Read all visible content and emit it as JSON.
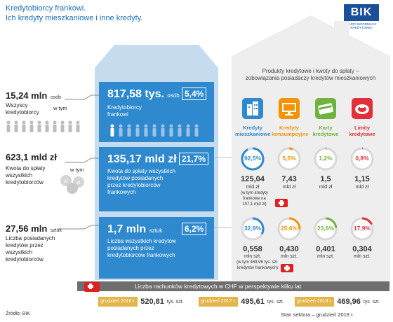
{
  "title": {
    "line1": "Kredytobiorcy frankowi.",
    "line2": "Ich kredyty mieszkaniowe i inne kredyty."
  },
  "logo": {
    "text": "BIK",
    "subtitle": "BIURO INFORMACJI KREDYTOWEJ"
  },
  "left": {
    "s1": {
      "value": "15,24 mln",
      "unit": "osób",
      "desc": [
        "Wszyscy",
        "kredytobiorcy"
      ],
      "wtym": "w tym"
    },
    "s2": {
      "value": "623,1 mld zł",
      "desc": [
        "Kwota do spłaty",
        "wszystkich",
        "kredytobiorców"
      ],
      "wtym": "w tym"
    },
    "s3": {
      "value": "27,56 mln",
      "unit": "sztuk",
      "desc": [
        "Liczba posiadanych",
        "kredytów przez",
        "wszystkich",
        "kredytobiorców"
      ]
    }
  },
  "center": {
    "p1": {
      "value": "817,58 tys.",
      "unit": "osób",
      "pct": "5,4%",
      "desc": [
        "Kredytobiorcy",
        "frankowi"
      ]
    },
    "p2": {
      "value": "135,17 mld zł",
      "pct": "21,7%",
      "desc": [
        "Kwota do spłaty wszystkich",
        "kredytów posiadanych",
        "przez kredytobiorców",
        "frankowych"
      ]
    },
    "p3": {
      "value": "1,7 mln",
      "unit": "sztuk",
      "pct": "6,2%",
      "desc": [
        "Liczba wszystkich kredytów",
        "posiadanych przez",
        "kredytobiorców frankowych"
      ]
    }
  },
  "right": {
    "heading": [
      "Produkty kredytowe i kwoty do spłaty –",
      "zobowiązania posiadaczy kredytów mieszkaniowych"
    ],
    "categories": [
      {
        "label": [
          "Kredyty",
          "mieszkaniowe"
        ],
        "color": "#2e89cf",
        "icon": "buildings-icon"
      },
      {
        "label": [
          "Kredyty",
          "konsumpcyjne"
        ],
        "color": "#f29400",
        "icon": "tv-icon"
      },
      {
        "label": [
          "Karty",
          "kredytowe"
        ],
        "color": "#6fb33e",
        "icon": "card-icon"
      },
      {
        "label": [
          "Limity",
          "kredytowe"
        ],
        "color": "#e2303a",
        "icon": "meat-icon"
      }
    ],
    "row1": {
      "pcts": [
        "92,5%",
        "5,5%",
        "1,2%",
        "0,8%"
      ],
      "fractions": [
        0.925,
        0.055,
        0.012,
        0.008
      ],
      "values": [
        "125,04",
        "7,43",
        "1,5",
        "1,15"
      ],
      "units": [
        "mld zł",
        "mld zł",
        "mld zł",
        "mld zł"
      ],
      "note": [
        "(w tym kredyty",
        "frankowe na",
        "107,1 mld zł)"
      ]
    },
    "row2": {
      "pcts": [
        "32,9%",
        "25,6%",
        "23,6%",
        "17,9%"
      ],
      "fractions": [
        0.329,
        0.256,
        0.236,
        0.179
      ],
      "values": [
        "0,558",
        "0,430",
        "0,401",
        "0,304"
      ],
      "units": [
        "mln szt.",
        "mln szt.",
        "mln szt.",
        "mln szt."
      ],
      "note": [
        "(w tym 469,96 tys. szt.",
        "kredytów frankowych)"
      ]
    }
  },
  "footer": {
    "bar": "Liczba rachunków kredytowych w CHF w perspektywie kilku lat",
    "years": [
      {
        "label": "grudzień 2016 r.",
        "value": "520,81",
        "unit": "tys. szt."
      },
      {
        "label": "grudzień 2017 r.",
        "value": "495,61",
        "unit": "tys. szt."
      },
      {
        "label": "grudzień 2018 r.",
        "value": "469,96",
        "unit": "tys. szt."
      }
    ],
    "source": "Źródło: BIK",
    "stan": "Stan sektora – grudzień 2018 r."
  }
}
